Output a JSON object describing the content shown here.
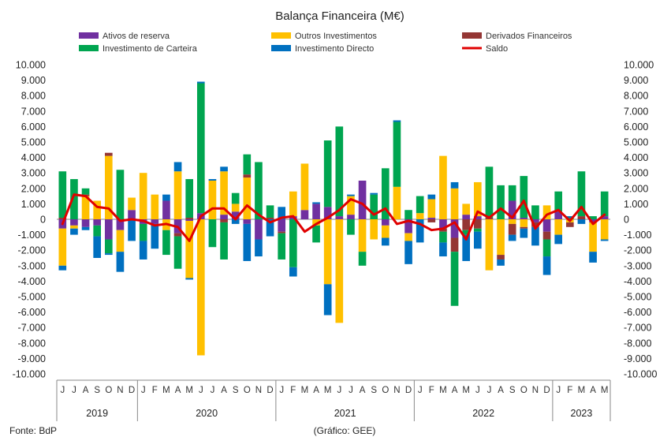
{
  "chart_data": {
    "type": "bar",
    "stacked": true,
    "title": "Balança Financeira (M€)",
    "source": "Fonte: BdP",
    "credit": "(Gráfico: GEE)",
    "ylim": [
      -10000,
      10000
    ],
    "yticks": [
      "10.000",
      "9.000",
      "8.000",
      "7.000",
      "6.000",
      "5.000",
      "4.000",
      "3.000",
      "2.000",
      "1.000",
      "0",
      "-1.000",
      "-2.000",
      "-3.000",
      "-4.000",
      "-5.000",
      "-6.000",
      "-7.000",
      "-8.000",
      "-9.000",
      "-10.000"
    ],
    "categories": [
      "J",
      "J",
      "A",
      "S",
      "O",
      "N",
      "D",
      "J",
      "F",
      "M",
      "A",
      "M",
      "J",
      "J",
      "A",
      "S",
      "O",
      "N",
      "D",
      "J",
      "F",
      "M",
      "A",
      "M",
      "J",
      "J",
      "A",
      "S",
      "O",
      "N",
      "D",
      "J",
      "F",
      "M",
      "A",
      "M",
      "J",
      "J",
      "A",
      "S",
      "O",
      "N",
      "D",
      "J",
      "F",
      "M",
      "A",
      "M"
    ],
    "years": [
      {
        "label": "2019",
        "start": 0,
        "end": 6
      },
      {
        "label": "2020",
        "start": 7,
        "end": 18
      },
      {
        "label": "2021",
        "start": 19,
        "end": 30
      },
      {
        "label": "2022",
        "start": 31,
        "end": 42
      },
      {
        "label": "2023",
        "start": 43,
        "end": 47
      }
    ],
    "series": [
      {
        "name": "Ativos de reserva",
        "color": "#7030A0",
        "values": [
          -600,
          -400,
          -500,
          -400,
          -1300,
          -700,
          600,
          -300,
          -300,
          1200,
          -900,
          -100,
          400,
          0,
          300,
          500,
          -300,
          -1300,
          0,
          -800,
          200,
          600,
          1000,
          800,
          200,
          300,
          2500,
          0,
          -400,
          0,
          -900,
          0,
          100,
          -600,
          -1200,
          300,
          200,
          0,
          0,
          1200,
          100,
          -200,
          -800,
          500,
          0,
          0,
          -200,
          200
        ]
      },
      {
        "name": "Outros Investimentos",
        "color": "#FFC000",
        "values": [
          -2400,
          -200,
          1500,
          1200,
          4100,
          -1400,
          800,
          3000,
          1600,
          -700,
          3100,
          -3700,
          -8800,
          2500,
          2800,
          500,
          2700,
          0,
          0,
          0,
          1600,
          3000,
          -400,
          -4200,
          -6700,
          1200,
          -2100,
          -1300,
          -800,
          2100,
          -500,
          400,
          1200,
          4100,
          2000,
          700,
          2200,
          -3300,
          -2300,
          -300,
          -500,
          0,
          900,
          -1000,
          -200,
          0,
          -1900,
          -1300
        ]
      },
      {
        "name": "Derivados Financeiros",
        "color": "#943634",
        "values": [
          100,
          0,
          100,
          0,
          200,
          0,
          0,
          0,
          0,
          0,
          -200,
          100,
          0,
          0,
          -200,
          0,
          200,
          0,
          100,
          -100,
          0,
          0,
          0,
          0,
          0,
          0,
          0,
          0,
          0,
          0,
          0,
          0,
          -200,
          -200,
          -900,
          -700,
          -600,
          100,
          -300,
          -700,
          -100,
          -300,
          -500,
          0,
          -300,
          200,
          0,
          0
        ]
      },
      {
        "name": "Investimento de Carteira",
        "color": "#00A550",
        "values": [
          3000,
          2600,
          400,
          -700,
          -900,
          3200,
          0,
          -1100,
          0,
          -1600,
          -2100,
          2500,
          8400,
          -1800,
          -2400,
          700,
          1300,
          3700,
          800,
          -1700,
          -3100,
          0,
          -1100,
          4300,
          5800,
          -1000,
          -900,
          1600,
          3300,
          4200,
          600,
          1100,
          0,
          -700,
          -3500,
          -300,
          -200,
          3300,
          2200,
          1000,
          2700,
          900,
          -1100,
          1300,
          100,
          2900,
          200,
          1600
        ]
      },
      {
        "name": "Investimento Directo",
        "color": "#0070C0",
        "values": [
          -300,
          -400,
          -200,
          -1400,
          -100,
          -1300,
          -1400,
          -1200,
          -1600,
          400,
          600,
          -100,
          100,
          100,
          300,
          -300,
          -2400,
          -1100,
          -1100,
          800,
          -600,
          0,
          100,
          -2000,
          0,
          100,
          0,
          100,
          -500,
          100,
          -1500,
          -1500,
          300,
          -900,
          400,
          -1700,
          -1100,
          0,
          -400,
          -400,
          -600,
          -1200,
          -1200,
          -600,
          100,
          -300,
          -700,
          -100
        ]
      }
    ],
    "line": {
      "name": "Saldo",
      "color": "#E00000",
      "values": [
        -300,
        1600,
        1500,
        800,
        700,
        -100,
        0,
        -100,
        -400,
        -300,
        -500,
        -1400,
        200,
        700,
        700,
        0,
        900,
        300,
        -200,
        100,
        200,
        -800,
        -300,
        100,
        600,
        1300,
        1000,
        300,
        700,
        -300,
        -100,
        -300,
        -700,
        -600,
        -200,
        -1300,
        500,
        100,
        700,
        100,
        1200,
        -600,
        300,
        600,
        -100,
        800,
        -300,
        300
      ]
    },
    "legend": {
      "rows": [
        [
          "Ativos de reserva",
          "Outros Investimentos",
          "Derivados Financeiros"
        ],
        [
          "Investimento de Carteira",
          "Investimento Directo",
          "Saldo"
        ]
      ]
    }
  }
}
